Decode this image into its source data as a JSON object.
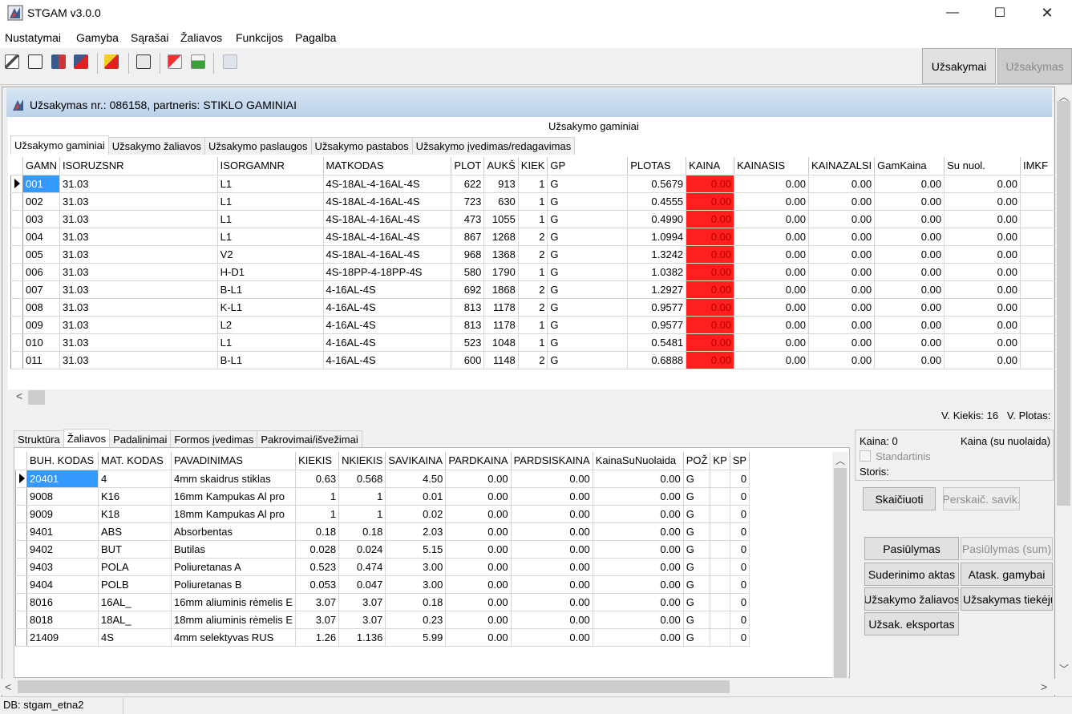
{
  "window": {
    "title": "STGAM v3.0.0",
    "min": "—",
    "max": "☐",
    "close": "✕"
  },
  "menu": [
    "Nustatymai",
    "Gamyba",
    "Sąrašai",
    "Žaliavos",
    "Funkcijos",
    "Pagalba"
  ],
  "toolbar": {
    "orders_label": "Užsakymai",
    "order_label": "Užsakymas"
  },
  "order": {
    "header": "Užsakymas nr.: 086158, partneris: STIKLO GAMINIAI",
    "caption": "Užsakymo gaminiai"
  },
  "top_tabs": [
    "Užsakymo gaminiai",
    "Užsakymo žaliavos",
    "Užsakymo paslaugos",
    "Užsakymo pastabos",
    "Užsakymo įvedimas/redagavimas"
  ],
  "top_grid": {
    "columns": [
      "GAMN",
      "ISORUZSNR",
      "ISORGAMNR",
      "MATKODAS",
      "PLOT",
      "AUKŠ",
      "KIEK",
      "GP",
      "PLOTAS",
      "KAINA",
      "KAINASIS",
      "KAINAZALSI",
      "GamKaina",
      "Su nuol.",
      "IMKF"
    ],
    "rows": [
      [
        "001",
        "31.03",
        "L1",
        "4S-18AL-4-16AL-4S",
        "622",
        "913",
        "1",
        "G",
        "0.5679",
        "0.00",
        "0.00",
        "0.00",
        "0.00",
        "0.00",
        ""
      ],
      [
        "002",
        "31.03",
        "L1",
        "4S-18AL-4-16AL-4S",
        "723",
        "630",
        "1",
        "G",
        "0.4555",
        "0.00",
        "0.00",
        "0.00",
        "0.00",
        "0.00",
        ""
      ],
      [
        "003",
        "31.03",
        "L1",
        "4S-18AL-4-16AL-4S",
        "473",
        "1055",
        "1",
        "G",
        "0.4990",
        "0.00",
        "0.00",
        "0.00",
        "0.00",
        "0.00",
        ""
      ],
      [
        "004",
        "31.03",
        "L1",
        "4S-18AL-4-16AL-4S",
        "867",
        "1268",
        "2",
        "G",
        "1.0994",
        "0.00",
        "0.00",
        "0.00",
        "0.00",
        "0.00",
        ""
      ],
      [
        "005",
        "31.03",
        "V2",
        "4S-18AL-4-16AL-4S",
        "968",
        "1368",
        "2",
        "G",
        "1.3242",
        "0.00",
        "0.00",
        "0.00",
        "0.00",
        "0.00",
        ""
      ],
      [
        "006",
        "31.03",
        "H-D1",
        "4S-18PP-4-18PP-4S",
        "580",
        "1790",
        "1",
        "G",
        "1.0382",
        "0.00",
        "0.00",
        "0.00",
        "0.00",
        "0.00",
        ""
      ],
      [
        "007",
        "31.03",
        "B-L1",
        "4-16AL-4S",
        "692",
        "1868",
        "2",
        "G",
        "1.2927",
        "0.00",
        "0.00",
        "0.00",
        "0.00",
        "0.00",
        ""
      ],
      [
        "008",
        "31.03",
        "K-L1",
        "4-16AL-4S",
        "813",
        "1178",
        "2",
        "G",
        "0.9577",
        "0.00",
        "0.00",
        "0.00",
        "0.00",
        "0.00",
        ""
      ],
      [
        "009",
        "31.03",
        "L2",
        "4-16AL-4S",
        "813",
        "1178",
        "1",
        "G",
        "0.9577",
        "0.00",
        "0.00",
        "0.00",
        "0.00",
        "0.00",
        ""
      ],
      [
        "010",
        "31.03",
        "L1",
        "4-16AL-4S",
        "523",
        "1048",
        "1",
        "G",
        "0.5481",
        "0.00",
        "0.00",
        "0.00",
        "0.00",
        "0.00",
        ""
      ],
      [
        "011",
        "31.03",
        "B-L1",
        "4-16AL-4S",
        "600",
        "1148",
        "2",
        "G",
        "0.6888",
        "0.00",
        "0.00",
        "0.00",
        "0.00",
        "0.00",
        ""
      ]
    ]
  },
  "totals": "V. Kiekis: 16   V. Plotas:",
  "bottom_tabs": [
    "Struktūra",
    "Žaliavos",
    "Padalinimai",
    "Formos įvedimas",
    "Pakrovimai/išvežimai"
  ],
  "bottom_grid": {
    "columns": [
      "BUH. KODAS",
      "MAT. KODAS",
      "PAVADINIMAS",
      "KIEKIS",
      "NKIEKIS",
      "SAVIKAINA",
      "PARDKAINA",
      "PARDSISKAINA",
      "KainaSuNuolaida",
      "POŽ",
      "KP",
      "SP"
    ],
    "rows": [
      [
        "20401",
        "4",
        "4mm skaidrus stiklas",
        "0.63",
        "0.568",
        "4.50",
        "0.00",
        "0.00",
        "0.00",
        "G",
        "",
        "0"
      ],
      [
        "9008",
        "K16",
        "16mm Kampukas Al pro",
        "1",
        "1",
        "0.01",
        "0.00",
        "0.00",
        "0.00",
        "G",
        "",
        "0"
      ],
      [
        "9009",
        "K18",
        "18mm Kampukas Al pro",
        "1",
        "1",
        "0.02",
        "0.00",
        "0.00",
        "0.00",
        "G",
        "",
        "0"
      ],
      [
        "9401",
        "ABS",
        "Absorbentas",
        "0.18",
        "0.18",
        "2.03",
        "0.00",
        "0.00",
        "0.00",
        "G",
        "",
        "0"
      ],
      [
        "9402",
        "BUT",
        "Butilas",
        "0.028",
        "0.024",
        "5.15",
        "0.00",
        "0.00",
        "0.00",
        "G",
        "",
        "0"
      ],
      [
        "9403",
        "POLA",
        "Poliuretanas A",
        "0.523",
        "0.474",
        "3.00",
        "0.00",
        "0.00",
        "0.00",
        "G",
        "",
        "0"
      ],
      [
        "9404",
        "POLB",
        "Poliuretanas B",
        "0.053",
        "0.047",
        "3.00",
        "0.00",
        "0.00",
        "0.00",
        "G",
        "",
        "0"
      ],
      [
        "8016",
        "16AL_",
        "16mm aliuminis rėmelis E",
        "3.07",
        "3.07",
        "0.18",
        "0.00",
        "0.00",
        "0.00",
        "G",
        "",
        "0"
      ],
      [
        "8018",
        "18AL_",
        "18mm aliuminis rėmelis E",
        "3.07",
        "3.07",
        "0.23",
        "0.00",
        "0.00",
        "0.00",
        "G",
        "",
        "0"
      ],
      [
        "21409",
        "4S",
        "4mm selektyvas RUS",
        "1.26",
        "1.136",
        "5.99",
        "0.00",
        "0.00",
        "0.00",
        "G",
        "",
        "0"
      ]
    ]
  },
  "price_panel": {
    "price": "Kaina: 0",
    "price_discount": "Kaina (su nuolaida)",
    "standard": "Standartinis",
    "thickness": "Storis:"
  },
  "buttons": {
    "calculate": "Skaičiuoti",
    "recalc": "Perskaič. savik.",
    "offer": "Pasiūlymas",
    "offer_sum": "Pasiūlymas (sum)",
    "agreement": "Suderinimo aktas",
    "production_report": "Atask. gamybai",
    "order_materials": "Užsakymo žaliavos",
    "order_supply": "Užsakymas tiekėju",
    "export": "Užsak. eksportas"
  },
  "status": "DB: stgam_etna2",
  "colors": {
    "price_cell": "#ff1f1f",
    "selection": "#3399ff",
    "header_gradient": "#b9d1ea"
  }
}
